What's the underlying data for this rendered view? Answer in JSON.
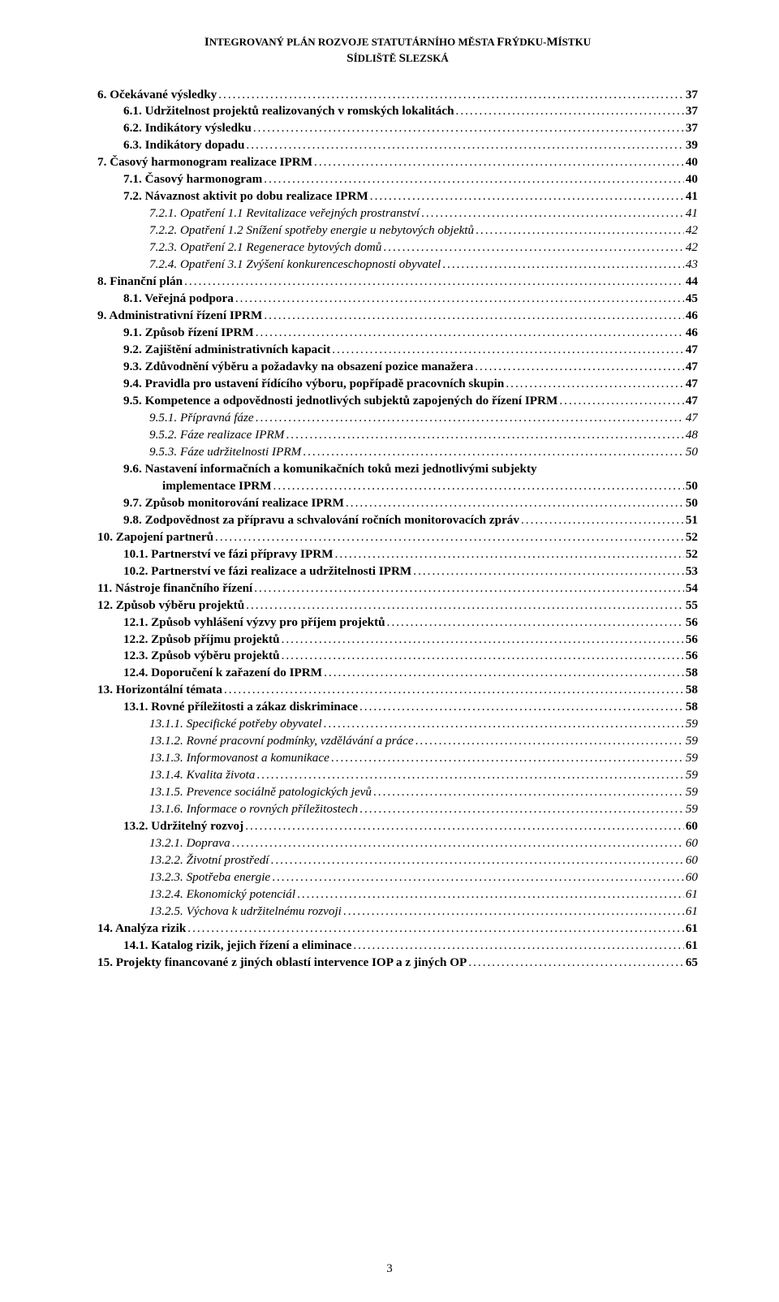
{
  "header": {
    "line1_left": "I",
    "line1_rest": "NTEGROVANÝ PLÁN ROZVOJE STATUTÁRNÍHO MĚSTA ",
    "line1_right1": "F",
    "line1_right2": "RÝDKU-",
    "line1_right3": "M",
    "line1_right4": "ÍSTKU",
    "line2_left": "S",
    "line2_rest": "ÍDLIŠTĚ ",
    "line2_right1": "S",
    "line2_right2": "LEZSKÁ"
  },
  "toc": [
    {
      "label": "6.  Očekávané výsledky",
      "page": "37",
      "bold": true,
      "italic": false,
      "indent": 0
    },
    {
      "label": "6.1.   Udržitelnost projektů realizovaných v romských lokalitách",
      "page": "37",
      "bold": true,
      "italic": false,
      "indent": 1
    },
    {
      "label": "6.2.   Indikátory výsledku",
      "page": "37",
      "bold": true,
      "italic": false,
      "indent": 1
    },
    {
      "label": "6.3.   Indikátory dopadu",
      "page": "39",
      "bold": true,
      "italic": false,
      "indent": 1
    },
    {
      "label": "7.  Časový harmonogram realizace IPRM",
      "page": "40",
      "bold": true,
      "italic": false,
      "indent": 0
    },
    {
      "label": "7.1.   Časový harmonogram",
      "page": "40",
      "bold": true,
      "italic": false,
      "indent": 1
    },
    {
      "label": "7.2.   Návaznost aktivit po dobu realizace IPRM",
      "page": "41",
      "bold": true,
      "italic": false,
      "indent": 1
    },
    {
      "label": "7.2.1. Opatření 1.1 Revitalizace veřejných prostranství",
      "page": "41",
      "bold": false,
      "italic": true,
      "indent": 2
    },
    {
      "label": "7.2.2. Opatření 1.2 Snížení spotřeby energie u nebytových objektů",
      "page": "42",
      "bold": false,
      "italic": true,
      "indent": 2
    },
    {
      "label": "7.2.3. Opatření 2.1 Regenerace bytových domů",
      "page": "42",
      "bold": false,
      "italic": true,
      "indent": 2
    },
    {
      "label": "7.2.4. Opatření 3.1 Zvýšení konkurenceschopnosti obyvatel",
      "page": "43",
      "bold": false,
      "italic": true,
      "indent": 2
    },
    {
      "label": "8.  Finanční plán",
      "page": "44",
      "bold": true,
      "italic": false,
      "indent": 0
    },
    {
      "label": "8.1.   Veřejná podpora",
      "page": "45",
      "bold": true,
      "italic": false,
      "indent": 1
    },
    {
      "label": "9.  Administrativní řízení IPRM",
      "page": "46",
      "bold": true,
      "italic": false,
      "indent": 0
    },
    {
      "label": "9.1.   Způsob řízení IPRM",
      "page": "46",
      "bold": true,
      "italic": false,
      "indent": 1
    },
    {
      "label": "9.2.   Zajištění administrativních kapacit",
      "page": "47",
      "bold": true,
      "italic": false,
      "indent": 1
    },
    {
      "label": "9.3.   Zdůvodnění výběru a požadavky na obsazení pozice manažera",
      "page": "47",
      "bold": true,
      "italic": false,
      "indent": 1
    },
    {
      "label": "9.4.   Pravidla pro ustavení řídícího výboru, popřípadě pracovních skupin",
      "page": "47",
      "bold": true,
      "italic": false,
      "indent": 1
    },
    {
      "label": "9.5.   Kompetence a odpovědnosti jednotlivých subjektů zapojených do řízení  IPRM",
      "page": "47",
      "bold": true,
      "italic": false,
      "indent": 1
    },
    {
      "label": "9.5.1.  Přípravná fáze",
      "page": "47",
      "bold": false,
      "italic": true,
      "indent": 2
    },
    {
      "label": "9.5.2.  Fáze realizace IPRM",
      "page": "48",
      "bold": false,
      "italic": true,
      "indent": 2
    },
    {
      "label": "9.5.3.  Fáze udržitelnosti IPRM",
      "page": "50",
      "bold": false,
      "italic": true,
      "indent": 2
    },
    {
      "label": "9.6.   Nastavení  informačních  a  komunikačních  toků  mezi  jednotlivými  subjekty",
      "page": "",
      "bold": true,
      "italic": false,
      "indent": 1,
      "noleader": true
    },
    {
      "label": "implementace IPRM",
      "page": "50",
      "bold": true,
      "italic": false,
      "indent": 1,
      "continuation": true
    },
    {
      "label": "9.7.   Způsob monitorování realizace IPRM",
      "page": "50",
      "bold": true,
      "italic": false,
      "indent": 1
    },
    {
      "label": "9.8.   Zodpovědnost za přípravu a schvalování ročních monitorovacích zpráv",
      "page": "51",
      "bold": true,
      "italic": false,
      "indent": 1
    },
    {
      "label": "10. Zapojení partnerů",
      "page": "52",
      "bold": true,
      "italic": false,
      "indent": 0
    },
    {
      "label": "10.1.  Partnerství ve fázi přípravy IPRM",
      "page": "52",
      "bold": true,
      "italic": false,
      "indent": 1
    },
    {
      "label": "10.2.  Partnerství ve fázi realizace a udržitelnosti IPRM",
      "page": "53",
      "bold": true,
      "italic": false,
      "indent": 1
    },
    {
      "label": "11. Nástroje finančního řízení",
      "page": "54",
      "bold": true,
      "italic": false,
      "indent": 0
    },
    {
      "label": "12. Způsob výběru projektů",
      "page": "55",
      "bold": true,
      "italic": false,
      "indent": 0
    },
    {
      "label": "12.1.  Způsob vyhlášení výzvy pro příjem projektů",
      "page": "56",
      "bold": true,
      "italic": false,
      "indent": 1
    },
    {
      "label": "12.2.  Způsob příjmu projektů",
      "page": "56",
      "bold": true,
      "italic": false,
      "indent": 1
    },
    {
      "label": "12.3.  Způsob výběru projektů",
      "page": "56",
      "bold": true,
      "italic": false,
      "indent": 1
    },
    {
      "label": "12.4.  Doporučení k zařazení do IPRM",
      "page": "58",
      "bold": true,
      "italic": false,
      "indent": 1
    },
    {
      "label": "13. Horizontální témata",
      "page": "58",
      "bold": true,
      "italic": false,
      "indent": 0
    },
    {
      "label": "13.1.  Rovné příležitosti a zákaz diskriminace",
      "page": "58",
      "bold": true,
      "italic": false,
      "indent": 1
    },
    {
      "label": "13.1.1. Specifické potřeby obyvatel",
      "page": "59",
      "bold": false,
      "italic": true,
      "indent": 2
    },
    {
      "label": "13.1.2. Rovné pracovní podmínky, vzdělávání a práce",
      "page": "59",
      "bold": false,
      "italic": true,
      "indent": 2
    },
    {
      "label": "13.1.3. Informovanost a komunikace",
      "page": "59",
      "bold": false,
      "italic": true,
      "indent": 2
    },
    {
      "label": "13.1.4. Kvalita života",
      "page": "59",
      "bold": false,
      "italic": true,
      "indent": 2
    },
    {
      "label": "13.1.5. Prevence sociálně patologických jevů",
      "page": "59",
      "bold": false,
      "italic": true,
      "indent": 2
    },
    {
      "label": "13.1.6. Informace o rovných příležitostech",
      "page": "59",
      "bold": false,
      "italic": true,
      "indent": 2
    },
    {
      "label": "13.2.  Udržitelný rozvoj",
      "page": "60",
      "bold": true,
      "italic": false,
      "indent": 1
    },
    {
      "label": "13.2.1. Doprava",
      "page": "60",
      "bold": false,
      "italic": true,
      "indent": 2
    },
    {
      "label": "13.2.2. Životní prostředí",
      "page": "60",
      "bold": false,
      "italic": true,
      "indent": 2
    },
    {
      "label": "13.2.3. Spotřeba energie",
      "page": "60",
      "bold": false,
      "italic": true,
      "indent": 2
    },
    {
      "label": "13.2.4. Ekonomický potenciál",
      "page": "61",
      "bold": false,
      "italic": true,
      "indent": 2
    },
    {
      "label": "13.2.5. Výchova k udržitelnému rozvoji",
      "page": "61",
      "bold": false,
      "italic": true,
      "indent": 2
    },
    {
      "label": "14. Analýza rizik",
      "page": "61",
      "bold": true,
      "italic": false,
      "indent": 0
    },
    {
      "label": "14.1.  Katalog rizik, jejich řízení a eliminace",
      "page": "61",
      "bold": true,
      "italic": false,
      "indent": 1
    },
    {
      "label": "15. Projekty financované z jiných oblastí intervence IOP a z jiných OP",
      "page": "65",
      "bold": true,
      "italic": false,
      "indent": 0
    }
  ],
  "page_number": "3"
}
